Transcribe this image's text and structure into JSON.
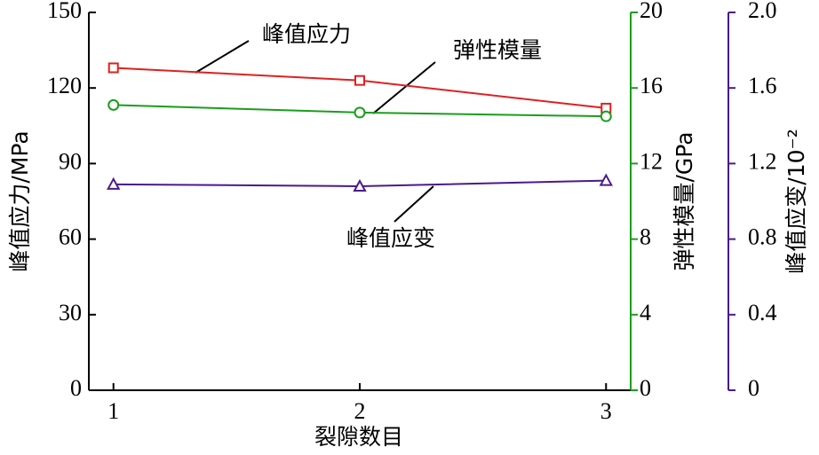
{
  "chart_data": {
    "type": "line",
    "x": [
      1,
      2,
      3
    ],
    "xlim": [
      0.9,
      3.1
    ],
    "xticks": [
      1,
      2,
      3
    ],
    "xlabel": "裂隙数目",
    "ylabel": "峰值应力/MPa",
    "ylim": [
      0,
      150
    ],
    "yticks": [
      0,
      30,
      60,
      90,
      120,
      150
    ],
    "y2label": "弹性模量/GPa",
    "y2lim": [
      0,
      20
    ],
    "y2ticks": [
      0,
      4,
      8,
      12,
      16,
      20
    ],
    "y2color": "#1a9e1a",
    "y3label": "峰值应变/10⁻²",
    "y3lim": [
      0,
      2
    ],
    "y3ticks": [
      0,
      0.4,
      0.8,
      1.2,
      1.6,
      {
        "value": 2,
        "label": "2.0"
      }
    ],
    "y3color": "#4b1a8a",
    "series": [
      {
        "name": "峰值应力",
        "color": "#e0201f",
        "marker": "square",
        "values": [
          128,
          123,
          112
        ]
      },
      {
        "name": "弹性模量",
        "color": "#1a9e1a",
        "marker": "circle",
        "axis": "y2",
        "values": [
          15.1,
          14.7,
          14.5
        ]
      },
      {
        "name": "峰值应变",
        "color": "#4b1a8a",
        "marker": "triangle",
        "axis": "y3",
        "values": [
          1.09,
          1.08,
          1.11
        ]
      }
    ]
  }
}
